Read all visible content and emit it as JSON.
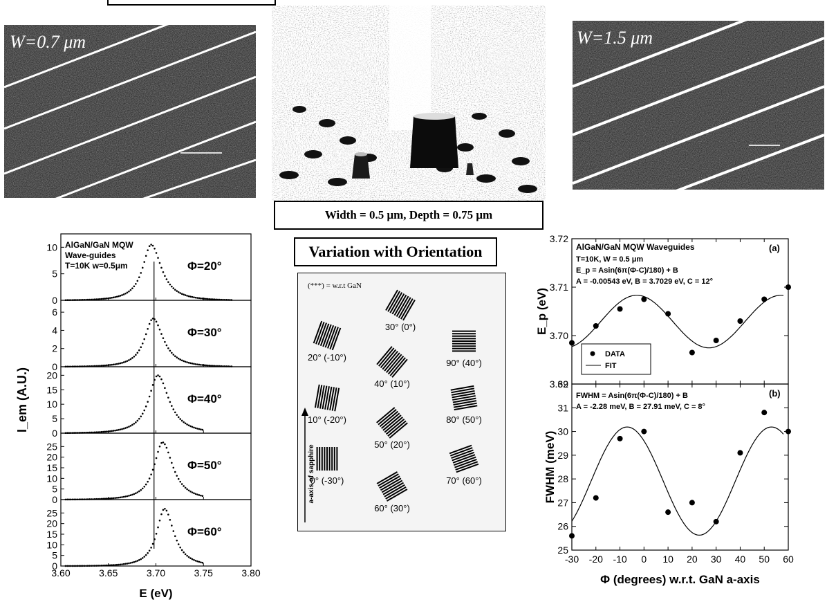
{
  "sem_left": {
    "label": "W=0.7 μm"
  },
  "sem_right": {
    "label": "W=1.5 μm"
  },
  "sem_center": {
    "caption": "Width = 0.5 μm, Depth = 0.75 μm"
  },
  "orientation": {
    "title": "Variation with Orientation",
    "legend_note": "(***) = w.r.t GaN",
    "axis_arrow_label": "a-axis of sapphire",
    "items": [
      {
        "label": "30° (0°)",
        "angle": 30
      },
      {
        "label": "20° (-10°)",
        "angle": 20
      },
      {
        "label": "90° (40°)",
        "angle": 90
      },
      {
        "label": "40° (10°)",
        "angle": 40
      },
      {
        "label": "10° (-20°)",
        "angle": 10
      },
      {
        "label": "80° (50°)",
        "angle": 80
      },
      {
        "label": "50° (20°)",
        "angle": 50
      },
      {
        "label": "0° (-30°)",
        "angle": 0
      },
      {
        "label": "70° (60°)",
        "angle": 70
      },
      {
        "label": "60° (30°)",
        "angle": 60
      }
    ]
  },
  "chart_data": [
    {
      "type": "scatter",
      "title": "AlGaN/GaN MQW Wave-guides",
      "subtitle": "T=10K w=0.5μm",
      "xlabel": "E (eV)",
      "ylabel": "I_em (A.U.)",
      "xlim": [
        3.6,
        3.8
      ],
      "xticks": [
        "3.60",
        "3.65",
        "3.70",
        "3.75",
        "3.80"
      ],
      "reference_line_x": 3.698,
      "panels": [
        {
          "label": "Φ=20°",
          "ylim": [
            0,
            12
          ],
          "yticks": [
            0,
            5,
            10
          ],
          "peak_x": 3.695,
          "peak_y": 10.5,
          "width_eV": 0.012,
          "x_end": 3.78
        },
        {
          "label": "Φ=30°",
          "ylim": [
            0,
            7
          ],
          "yticks": [
            0,
            2,
            4,
            6
          ],
          "peak_x": 3.697,
          "peak_y": 5.3,
          "width_eV": 0.012,
          "x_end": 3.78
        },
        {
          "label": "Φ=40°",
          "ylim": [
            0,
            22
          ],
          "yticks": [
            0,
            5,
            10,
            15,
            20
          ],
          "peak_x": 3.702,
          "peak_y": 20.0,
          "width_eV": 0.013,
          "x_end": 3.75
        },
        {
          "label": "Φ=50°",
          "ylim": [
            0,
            30
          ],
          "yticks": [
            0,
            5,
            10,
            15,
            20,
            25
          ],
          "peak_x": 3.707,
          "peak_y": 27.0,
          "width_eV": 0.012,
          "x_end": 3.75
        },
        {
          "label": "Φ=60°",
          "ylim": [
            0,
            30
          ],
          "yticks": [
            0,
            5,
            10,
            15,
            20,
            25
          ],
          "peak_x": 3.709,
          "peak_y": 27.0,
          "width_eV": 0.011,
          "x_end": 3.75
        }
      ]
    },
    {
      "type": "scatter",
      "panel": "(a)",
      "title": "AlGaN/GaN MQW Waveguides",
      "notes": [
        "T=10K, W = 0.5 μm",
        "E_p = Asin(6π(Φ-C)/180) + B",
        "A = -0.00543 eV, B = 3.7029 eV, C = 12°"
      ],
      "xlim": [
        -30,
        60
      ],
      "ylim": [
        3.69,
        3.72
      ],
      "yticks": [
        "3.69",
        "3.70",
        "3.71",
        "3.72"
      ],
      "ylabel": "E_p (eV)",
      "legend": {
        "data": "DATA",
        "fit": "FIT",
        "position": "bottom-left"
      },
      "x": [
        -30,
        -20,
        -10,
        0,
        10,
        20,
        30,
        40,
        50,
        60
      ],
      "y": [
        3.6985,
        3.702,
        3.7055,
        3.7075,
        3.7045,
        3.6965,
        3.699,
        3.703,
        3.7075,
        3.71
      ],
      "fit": {
        "A": -0.00543,
        "B": 3.7029,
        "C": 12
      }
    },
    {
      "type": "scatter",
      "panel": "(b)",
      "notes": [
        "FWHM = Asin(6π(Φ-C)/180) + B",
        "A = -2.28 meV, B = 27.91 meV, C = 8°"
      ],
      "xlim": [
        -30,
        60
      ],
      "ylim": [
        25,
        32
      ],
      "yticks": [
        "25",
        "26",
        "27",
        "28",
        "29",
        "30",
        "31",
        "32"
      ],
      "xticks": [
        "-30",
        "-20",
        "-10",
        "0",
        "10",
        "20",
        "30",
        "40",
        "50",
        "60"
      ],
      "ylabel": "FWHM (meV)",
      "xlabel": "Φ (degrees) w.r.t. GaN a-axis",
      "x": [
        -30,
        -20,
        -10,
        0,
        10,
        20,
        30,
        40,
        50,
        60
      ],
      "y": [
        25.6,
        27.2,
        29.7,
        30.0,
        26.6,
        27.0,
        26.2,
        29.1,
        30.8,
        30.0
      ],
      "fit": {
        "A": -2.28,
        "B": 27.91,
        "C": 8
      }
    }
  ]
}
